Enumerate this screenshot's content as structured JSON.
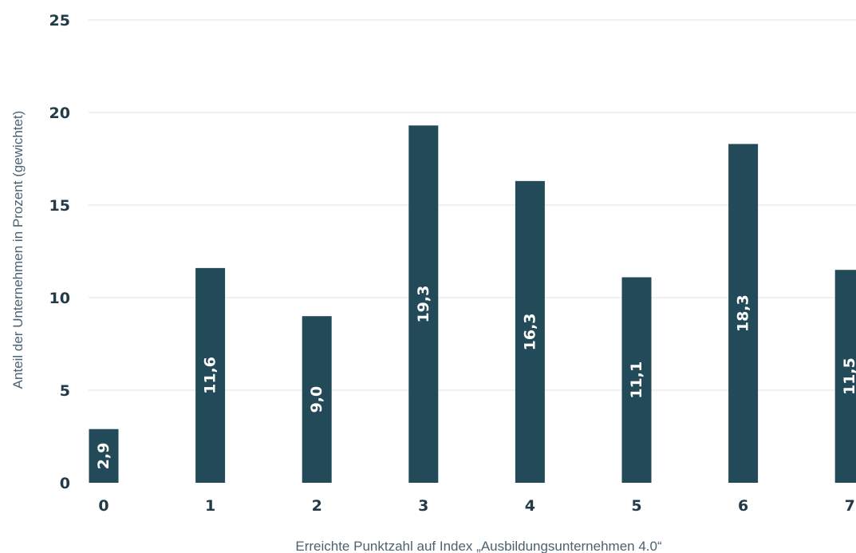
{
  "chart_data": {
    "type": "bar",
    "title": "",
    "xlabel": "Erreichte Punktzahl auf Index „Ausbildungsunternehmen 4.0“",
    "ylabel": "Anteil der Unternehmen in Prozent (gewichtet)",
    "categories": [
      "0",
      "1",
      "2",
      "3",
      "4",
      "5",
      "6",
      "7"
    ],
    "values": [
      2.9,
      11.6,
      9.0,
      19.3,
      16.3,
      11.1,
      18.3,
      11.5
    ],
    "value_labels": [
      "2,9",
      "11,6",
      "9,0",
      "19,3",
      "16,3",
      "11,1",
      "18,3",
      "11,5"
    ],
    "ylim": [
      0,
      25
    ],
    "yticks": [
      "0",
      "5",
      "10",
      "15",
      "20",
      "25"
    ],
    "grid": true,
    "legend": "none",
    "colors": {
      "bar": "#234a58",
      "bar_label": "#ffffff",
      "tick_text": "#233a49",
      "axis_title": "#4c6270",
      "grid": "#e3e3e3"
    }
  }
}
